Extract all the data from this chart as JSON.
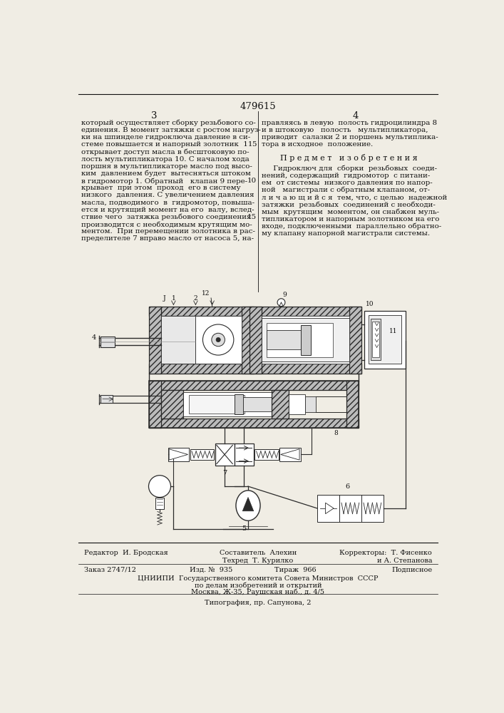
{
  "patent_number": "479615",
  "page_left": "3",
  "page_right": "4",
  "bg_color": "#f0ede4",
  "text_color": "#111111",
  "left_column_text": [
    "который осуществляет сборку резьбового со-",
    "единения. В момент затяжки с ростом нагруз-",
    "ки на шпинделе гидроключа давление в си-",
    "стеме повышается и напорный золотник  11",
    "открывает доступ масла в бесштоковую по-",
    "лость мультипликатора 10. С началом хода",
    "поршня в мультипликаторе масло под высо-",
    "ким  давлением будет  вытесняться штоком",
    "в гидромотор 1. Обратный   клапан 9 пере-",
    "крывает  при этом  проход  его в систему",
    "низкого  давления. С увеличением давления",
    "масла, подводимого  в  гидромотор, повыша-",
    "ется и крутящий момент на его  валу, вслед-",
    "ствие чего  затяжка резьбового соединения",
    "производится с необходимым крутящим мо-",
    "ментом.  При перемещении золотника в рас-",
    "пределителе 7 вправо масло от насоса 5, на-"
  ],
  "line_numbers": [
    {
      "idx": 3,
      "num": "5"
    },
    {
      "idx": 8,
      "num": "10"
    },
    {
      "idx": 13,
      "num": "15"
    }
  ],
  "right_col_top": [
    "правляясь в левую  полость гидроцилиндра 8",
    "и в штоковую   полость   мультипликатора,",
    "приводит  салазки 2 и поршень мультиплика-",
    "тора в исходное  положение."
  ],
  "predmet_title": "П р е д м е т   и з о б р е т е н и я",
  "right_col_bot": [
    "     Гидроключ для  сборки  резьбовых  соеди-",
    "нений, содержащий  гидромотор  с питани-",
    "ем  от системы  низкого давления по напор-",
    "ной   магистрали с обратным клапаном, от-",
    "л и ч а ю щ и й с я  тем, что, с целью  надежной",
    "затяжки  резьбовых  соединений с необходи-",
    "мым  крутящим  моментом, он снабжен муль-",
    "типликатором и напорным золотником на его",
    "входе, подключенными  параллельно обратно-",
    "му клапану напорной магистрали системы."
  ],
  "f1l": "Редактор  И. Бродская",
  "f1c": "Составитель  Алехин",
  "f1r": "Корректоры:  Т. Фисенко",
  "f2r": "и А. Степанова",
  "f2c": "Техред  Т. Курилко",
  "f3l": "Заказ 2747/12",
  "f3cl": "Изд. №  935",
  "f3cr": "Тираж  966",
  "f3r": "Подписное",
  "f4": "ЦНИИПИ  Государственного комитета Совета Министров  СССР",
  "f5": "по делам изобретений и открытий",
  "f6": "Москва, Ж-35, Раушская наб., д. 4/5",
  "f7": "Типография, пр. Сапунова, 2"
}
